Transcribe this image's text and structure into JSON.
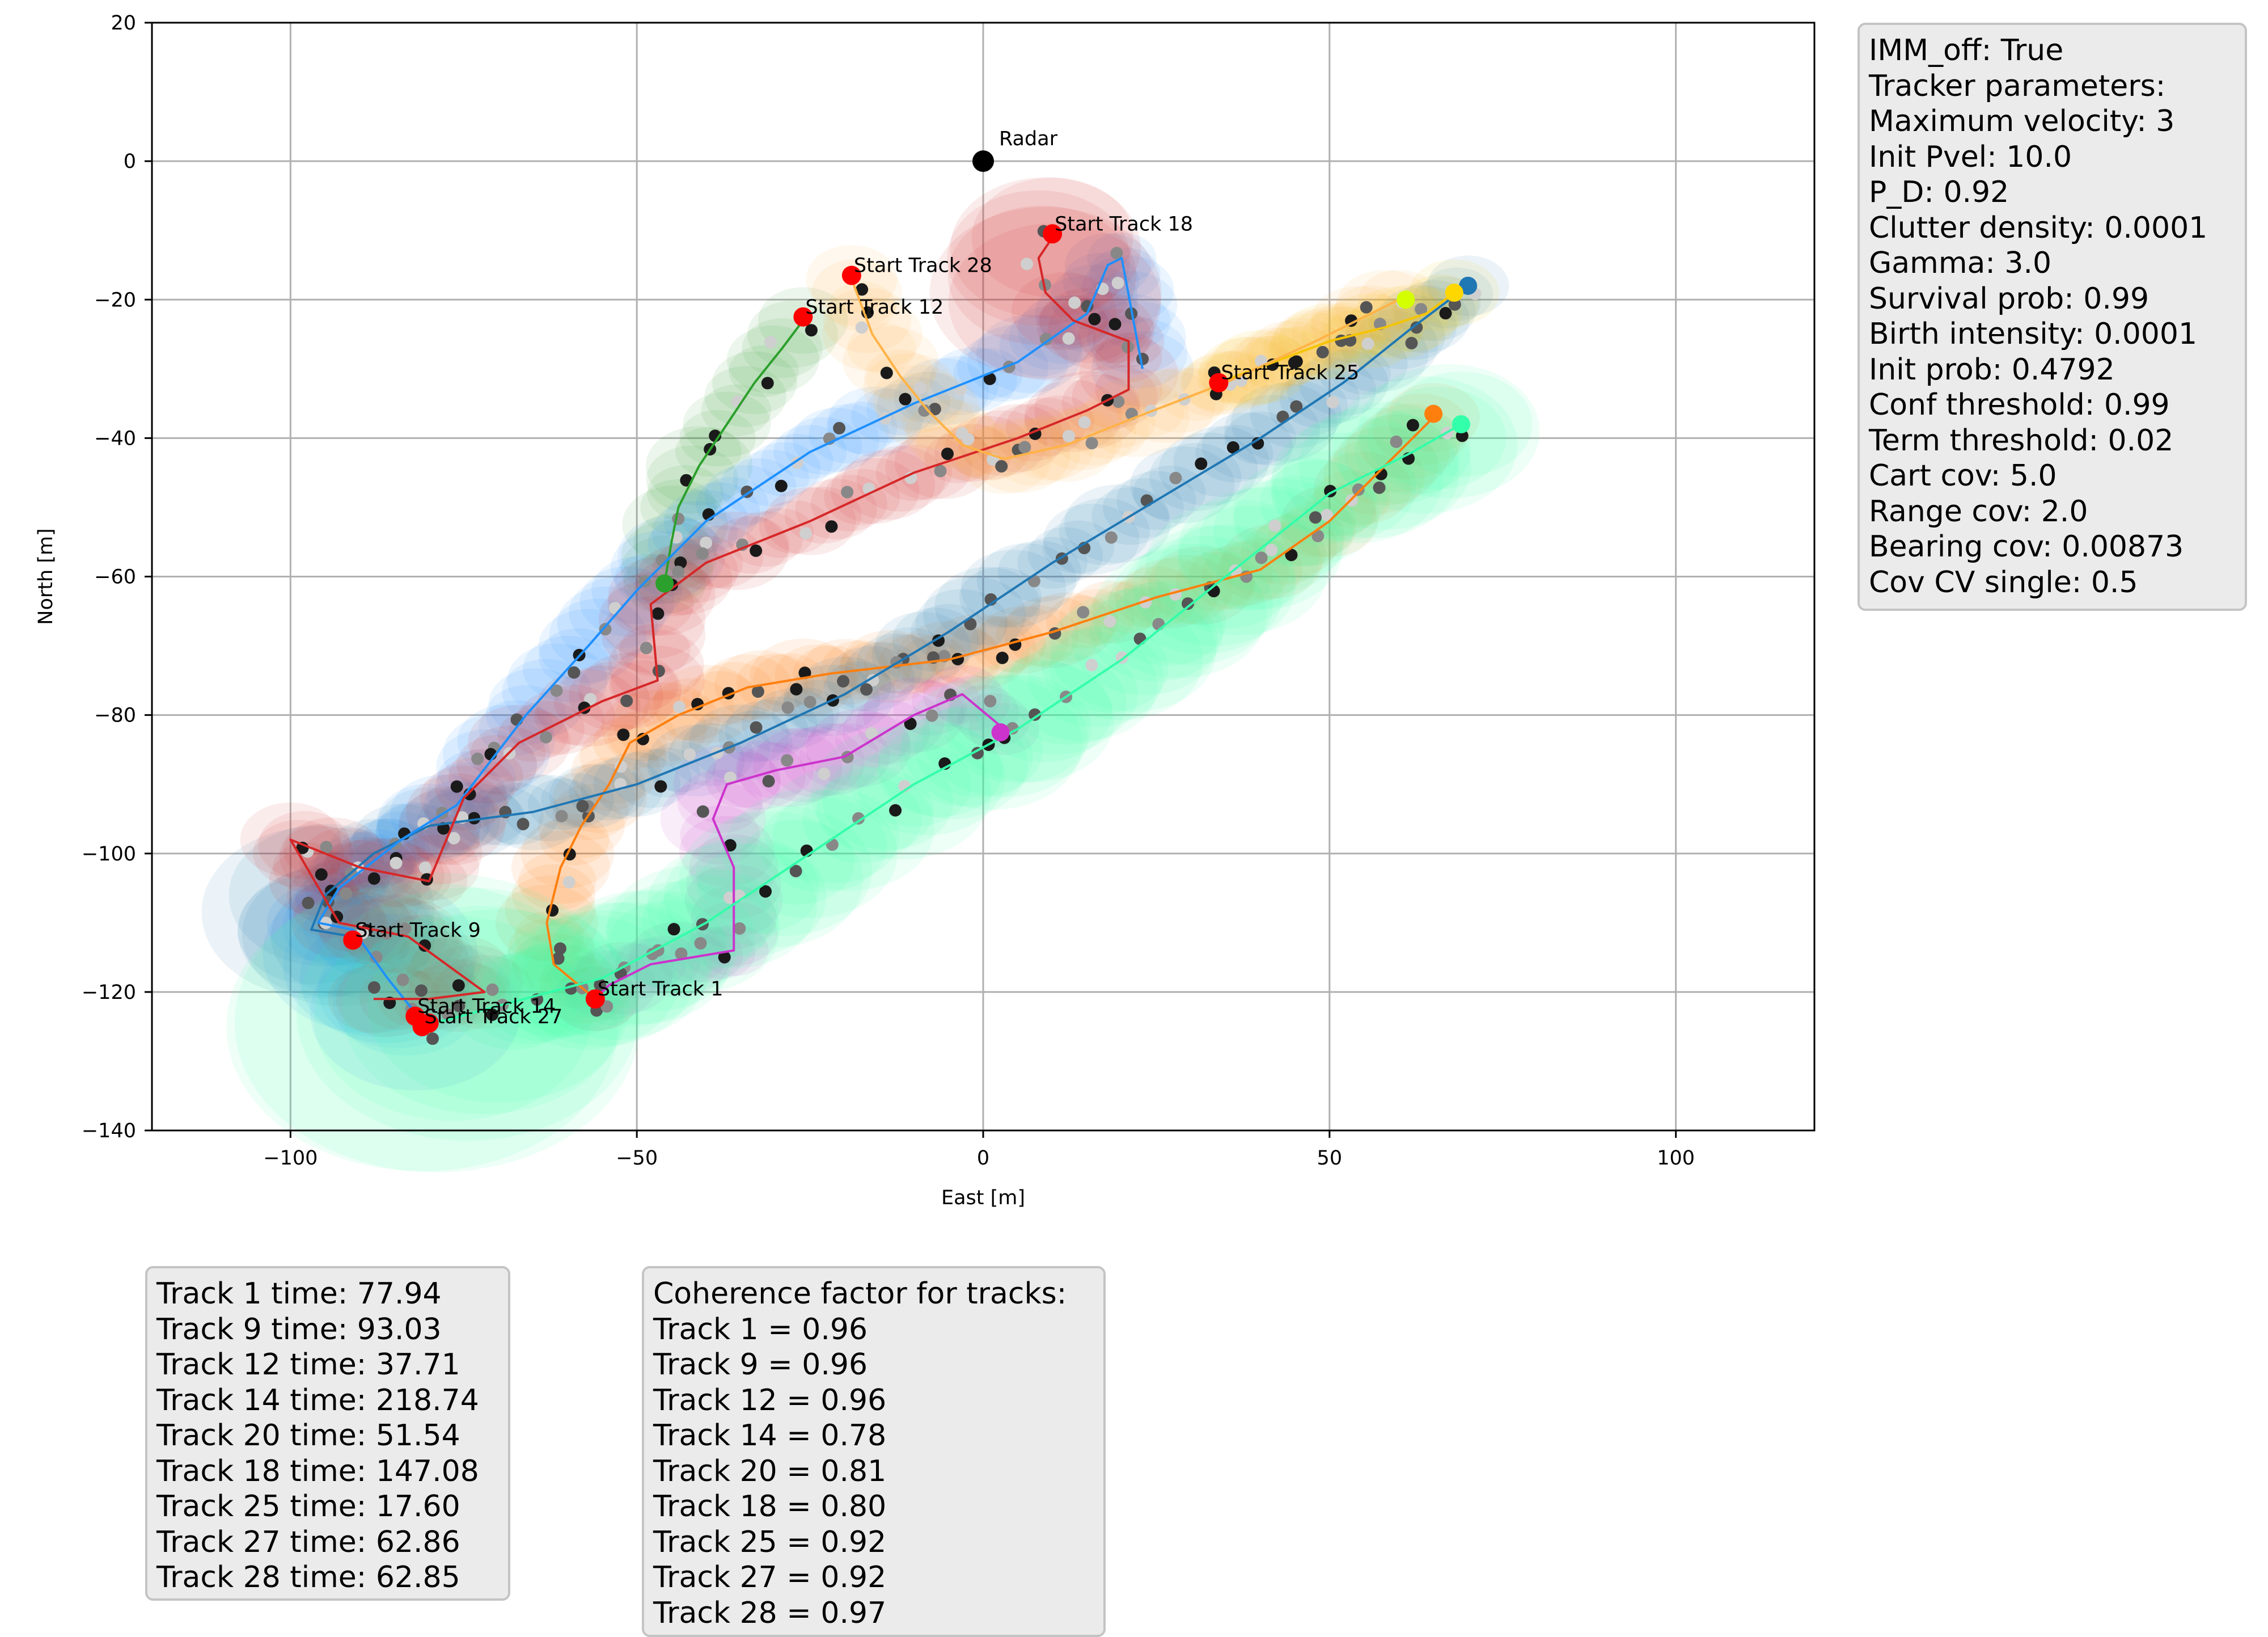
{
  "chart_data": {
    "type": "scatter",
    "xlabel": "East [m]",
    "ylabel": "North [m]",
    "xlim": [
      -120,
      120
    ],
    "ylim": [
      -140,
      20
    ],
    "xticks": [
      -100,
      -50,
      0,
      50,
      100
    ],
    "yticks": [
      20,
      0,
      -20,
      -40,
      -60,
      -80,
      -100,
      -120,
      -140
    ],
    "xtick_labels": [
      "−100",
      "−50",
      "0",
      "50",
      "100"
    ],
    "ytick_labels": [
      "20",
      "0",
      "−20",
      "−40",
      "−60",
      "−80",
      "−100",
      "−120",
      "−140"
    ],
    "grid": true,
    "radar": {
      "x": 0,
      "y": 0,
      "label": "Radar"
    },
    "start_labels": [
      {
        "text": "Start Track 18",
        "x": 10,
        "y": -10.5
      },
      {
        "text": "Start Track 28",
        "x": -19,
        "y": -16.5
      },
      {
        "text": "Start Track 12",
        "x": -26,
        "y": -22.5
      },
      {
        "text": "Start Track 25",
        "x": 34,
        "y": -32
      },
      {
        "text": "Start Track 9",
        "x": -91,
        "y": -112.5
      },
      {
        "text": "Start Track 1",
        "x": -56,
        "y": -121
      },
      {
        "text": "Start Track 14",
        "x": -82,
        "y": -123.5
      },
      {
        "text": "Start Track 27",
        "x": -81,
        "y": -125
      }
    ],
    "tracks": [
      {
        "id": "1",
        "color": "#ff7f0e",
        "points": [
          [
            -56,
            -121
          ],
          [
            -62,
            -116
          ],
          [
            -63,
            -110
          ],
          [
            -61,
            -102
          ],
          [
            -58,
            -96
          ],
          [
            -54,
            -90
          ],
          [
            -51,
            -84
          ],
          [
            -44,
            -80
          ],
          [
            -34,
            -76
          ],
          [
            -22,
            -74
          ],
          [
            -5,
            -72
          ],
          [
            10,
            -68
          ],
          [
            25,
            -63
          ],
          [
            40,
            -59
          ],
          [
            50,
            -52
          ],
          [
            58,
            -44
          ],
          [
            65,
            -37
          ]
        ]
      },
      {
        "id": "9",
        "color": "#1f77b4",
        "points": [
          [
            -91,
            -112
          ],
          [
            -97,
            -111
          ],
          [
            -95,
            -106
          ],
          [
            -88,
            -100
          ],
          [
            -80,
            -96
          ],
          [
            -65,
            -94
          ],
          [
            -50,
            -90
          ],
          [
            -35,
            -84
          ],
          [
            -20,
            -77
          ],
          [
            -5,
            -68
          ],
          [
            10,
            -58
          ],
          [
            25,
            -49
          ],
          [
            40,
            -40
          ],
          [
            52,
            -32
          ],
          [
            62,
            -24
          ],
          [
            70,
            -18
          ]
        ]
      },
      {
        "id": "12",
        "color": "#2ca02c",
        "points": [
          [
            -26,
            -23
          ],
          [
            -29,
            -27
          ],
          [
            -33,
            -32
          ],
          [
            -37,
            -38
          ],
          [
            -41,
            -44
          ],
          [
            -44,
            -50
          ],
          [
            -45,
            -55
          ],
          [
            -46,
            -61
          ]
        ]
      },
      {
        "id": "14",
        "color": "#1e90ff",
        "points": [
          [
            -82,
            -123
          ],
          [
            -86,
            -118
          ],
          [
            -91,
            -111
          ],
          [
            -96,
            -110
          ],
          [
            -93,
            -105
          ],
          [
            -84,
            -98
          ],
          [
            -76,
            -93
          ],
          [
            -66,
            -80
          ],
          [
            -57,
            -70
          ],
          [
            -50,
            -62
          ],
          [
            -40,
            -52
          ],
          [
            -25,
            -42
          ],
          [
            -10,
            -35
          ],
          [
            5,
            -29
          ],
          [
            15,
            -22
          ],
          [
            18,
            -15
          ],
          [
            20,
            -14
          ],
          [
            23,
            -30
          ]
        ]
      },
      {
        "id": "18",
        "color": "#d62728",
        "points": [
          [
            10,
            -11
          ],
          [
            8,
            -14
          ],
          [
            9,
            -19
          ],
          [
            13,
            -23
          ],
          [
            21,
            -26
          ],
          [
            21,
            -33
          ],
          [
            15,
            -36
          ],
          [
            5,
            -40
          ],
          [
            -10,
            -45
          ],
          [
            -25,
            -52
          ],
          [
            -40,
            -58
          ],
          [
            -48,
            -64
          ],
          [
            -47,
            -75
          ],
          [
            -55,
            -78
          ],
          [
            -67,
            -84
          ],
          [
            -75,
            -92
          ],
          [
            -80,
            -104
          ],
          [
            -90,
            -102
          ],
          [
            -100,
            -98
          ],
          [
            -93,
            -110
          ],
          [
            -83,
            -112
          ],
          [
            -72,
            -120
          ],
          [
            -80,
            -121
          ],
          [
            -88,
            -121
          ]
        ]
      },
      {
        "id": "20",
        "color": "#cc33cc",
        "points": [
          [
            3,
            -82
          ],
          [
            -3,
            -77
          ],
          [
            -10,
            -80
          ],
          [
            -20,
            -86
          ],
          [
            -30,
            -88
          ],
          [
            -37,
            -90
          ],
          [
            -39,
            -95
          ],
          [
            -36,
            -102
          ],
          [
            -36,
            -114
          ],
          [
            -48,
            -116
          ],
          [
            -54,
            -119
          ],
          [
            -56,
            -121
          ]
        ]
      },
      {
        "id": "25",
        "color": "#f5c400",
        "points": [
          [
            34,
            -32
          ],
          [
            42,
            -29
          ],
          [
            50,
            -26
          ],
          [
            58,
            -24
          ],
          [
            64,
            -22
          ],
          [
            68,
            -19
          ]
        ]
      },
      {
        "id": "27",
        "color": "#33ffaa",
        "points": [
          [
            -81,
            -125
          ],
          [
            -70,
            -122
          ],
          [
            -55,
            -118
          ],
          [
            -40,
            -110
          ],
          [
            -25,
            -100
          ],
          [
            -10,
            -90
          ],
          [
            5,
            -82
          ],
          [
            20,
            -72
          ],
          [
            35,
            -60
          ],
          [
            50,
            -48
          ],
          [
            62,
            -42
          ],
          [
            69,
            -38
          ]
        ]
      },
      {
        "id": "28",
        "color": "#ffb347",
        "points": [
          [
            -19,
            -17
          ],
          [
            -16,
            -25
          ],
          [
            -12,
            -31
          ],
          [
            -8,
            -36
          ],
          [
            -3,
            -41
          ],
          [
            3,
            -43
          ],
          [
            12,
            -41
          ],
          [
            22,
            -37
          ],
          [
            35,
            -32
          ],
          [
            48,
            -26
          ],
          [
            60,
            -20
          ]
        ]
      }
    ],
    "end_markers": [
      {
        "track": "1",
        "x": 65,
        "y": -36.5,
        "color": "#ff7f0e"
      },
      {
        "track": "9",
        "x": 70,
        "y": -18,
        "color": "#1f77b4"
      },
      {
        "track": "12",
        "x": -46,
        "y": -61,
        "color": "#2ca02c"
      },
      {
        "track": "20",
        "x": 2.5,
        "y": -82.5,
        "color": "#cc33cc"
      },
      {
        "track": "25",
        "x": 68,
        "y": -19,
        "color": "#ffd700"
      },
      {
        "track": "28",
        "x": 61,
        "y": -20,
        "color": "#d4ff00"
      },
      {
        "track": "27",
        "x": 69,
        "y": -38,
        "color": "#33ffaa"
      }
    ],
    "start_markers": [
      {
        "x": 10,
        "y": -10.5
      },
      {
        "x": -19,
        "y": -16.5
      },
      {
        "x": -26,
        "y": -22.5
      },
      {
        "x": 34,
        "y": -32
      },
      {
        "x": -91,
        "y": -112.5
      },
      {
        "x": -56,
        "y": -121
      },
      {
        "x": -82,
        "y": -123.5
      },
      {
        "x": -81,
        "y": -125
      },
      {
        "x": -80,
        "y": -124.5
      }
    ]
  },
  "parameters_box": {
    "lines": [
      "IMM_off: True",
      "Tracker parameters:",
      "Maximum velocity: 3",
      "Init Pvel: 10.0",
      "P_D: 0.92",
      "Clutter density: 0.0001",
      "Gamma: 3.0",
      "Survival prob: 0.99",
      "Birth intensity: 0.0001",
      "Init prob: 0.4792",
      "Conf threshold: 0.99",
      "Term threshold: 0.02",
      "Cart cov: 5.0",
      "Range cov: 2.0",
      "Bearing cov: 0.00873",
      "Cov CV single: 0.5"
    ]
  },
  "track_times_box": {
    "lines": [
      "Track 1 time: 77.94",
      "Track 9 time: 93.03",
      "Track 12 time: 37.71",
      "Track 14 time: 218.74",
      "Track 20 time: 51.54",
      "Track 18 time: 147.08",
      "Track 25 time: 17.60",
      "Track 27 time: 62.86",
      "Track 28 time: 62.85"
    ]
  },
  "coherence_box": {
    "lines": [
      "Coherence factor for tracks:",
      "Track 1 = 0.96",
      "Track 9 = 0.96",
      "Track 12 = 0.96",
      "Track 14 = 0.78",
      "Track 20 = 0.81",
      "Track 18 = 0.80",
      "Track 25 = 0.92",
      "Track 27 = 0.92",
      "Track 28 = 0.97"
    ]
  }
}
